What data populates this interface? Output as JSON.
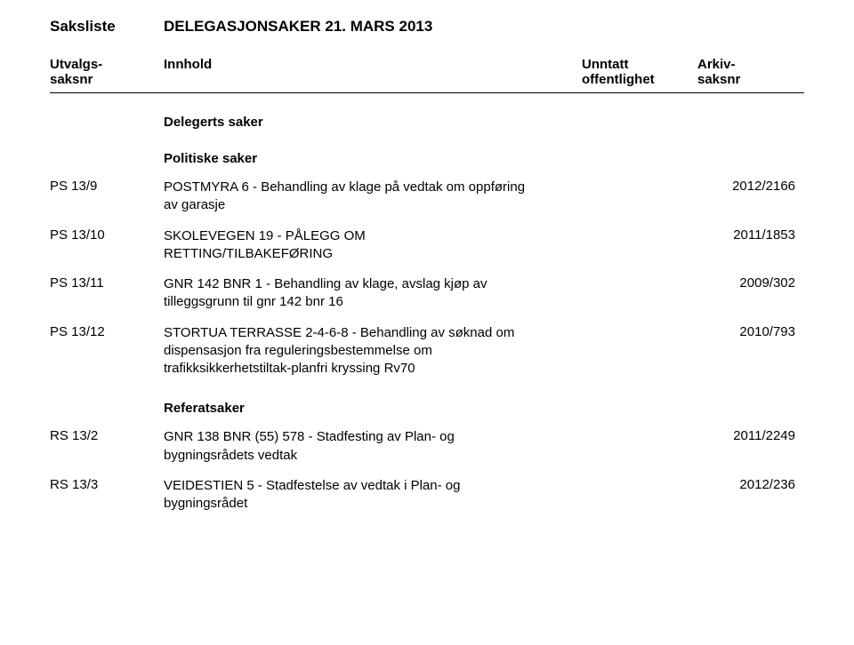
{
  "title": {
    "left": "Saksliste",
    "right": "DELEGASJONSAKER 21. MARS 2013"
  },
  "headers": {
    "col1_line1": "Utvalgs-",
    "col1_line2": "saksnr",
    "col2": "Innhold",
    "col3_line1": "Unntatt",
    "col3_line2": "offentlighet",
    "col4_line1": "Arkiv-",
    "col4_line2": "saksnr"
  },
  "sections": {
    "delegerts": "Delegerts saker",
    "politiske": "Politiske saker",
    "referat": "Referatsaker"
  },
  "rows": {
    "r1": {
      "id": "PS 13/9",
      "content": "POSTMYRA 6 - Behandling av klage på vedtak om oppføring av garasje",
      "arkiv": "2012/2166"
    },
    "r2": {
      "id": "PS 13/10",
      "content": "SKOLEVEGEN 19 - PÅLEGG OM RETTING/TILBAKEFØRING",
      "arkiv": "2011/1853"
    },
    "r3": {
      "id": "PS 13/11",
      "content": "GNR 142 BNR 1 - Behandling av klage, avslag kjøp av tilleggsgrunn til gnr 142 bnr 16",
      "arkiv": "2009/302"
    },
    "r4": {
      "id": "PS 13/12",
      "content": "STORTUA TERRASSE 2-4-6-8 - Behandling av søknad om dispensasjon fra reguleringsbestemmelse om trafikksikkerhetstiltak-planfri kryssing Rv70",
      "arkiv": "2010/793"
    },
    "r5": {
      "id": "RS 13/2",
      "content": "GNR 138 BNR (55) 578 - Stadfesting av Plan- og bygningsrådets vedtak",
      "arkiv": "2011/2249"
    },
    "r6": {
      "id": "RS 13/3",
      "content": "VEIDESTIEN 5 - Stadfestelse av vedtak i Plan- og bygningsrådet",
      "arkiv": "2012/236"
    }
  }
}
